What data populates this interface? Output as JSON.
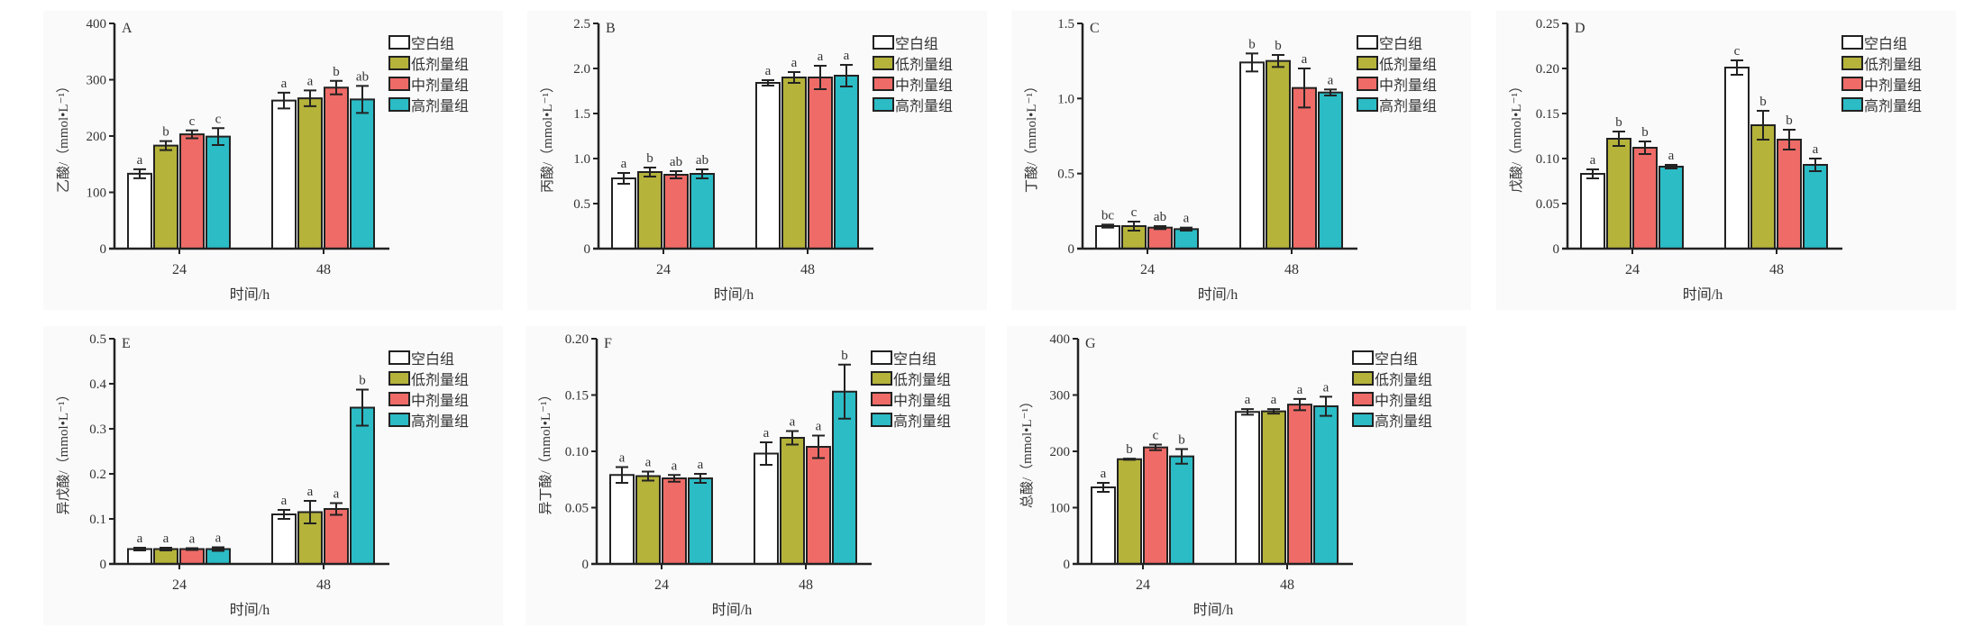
{
  "legend": [
    "空白组",
    "低剂量组",
    "中剂量组",
    "高剂量组"
  ],
  "colors": [
    "#ffffff",
    "#b5b33a",
    "#ef6b67",
    "#2bbcc6"
  ],
  "xlabel": "时间/h",
  "chart_data": [
    {
      "type": "bar",
      "panel": "A",
      "ylabel": "乙酸/（mmol•L⁻¹）",
      "categories": [
        "24",
        "48"
      ],
      "ylim": [
        0,
        400
      ],
      "ticks": [
        "0",
        "100",
        "200",
        "300",
        "400"
      ],
      "tick_values": [
        0,
        100,
        200,
        300,
        400
      ],
      "series": [
        {
          "name": "空白组",
          "values": [
            133,
            263
          ],
          "errors": [
            8,
            14
          ],
          "letters": [
            "a",
            "a"
          ]
        },
        {
          "name": "低剂量组",
          "values": [
            183,
            267
          ],
          "errors": [
            8,
            14
          ],
          "letters": [
            "b",
            "a"
          ]
        },
        {
          "name": "中剂量组",
          "values": [
            203,
            286
          ],
          "errors": [
            7,
            12
          ],
          "letters": [
            "c",
            "b"
          ]
        },
        {
          "name": "高剂量组",
          "values": [
            199,
            265
          ],
          "errors": [
            15,
            24
          ],
          "letters": [
            "c",
            "ab"
          ]
        }
      ]
    },
    {
      "type": "bar",
      "panel": "B",
      "ylabel": "丙酸/（mmol•L⁻¹）",
      "categories": [
        "24",
        "48"
      ],
      "ylim": [
        0,
        2.5
      ],
      "ticks": [
        "0",
        "0.5",
        "1.0",
        "1.5",
        "2.0",
        "2.5"
      ],
      "tick_values": [
        0,
        0.5,
        1,
        1.5,
        2,
        2.5
      ],
      "series": [
        {
          "name": "空白组",
          "values": [
            0.78,
            1.84
          ],
          "errors": [
            0.06,
            0.03
          ],
          "letters": [
            "a",
            "a"
          ]
        },
        {
          "name": "低剂量组",
          "values": [
            0.85,
            1.9
          ],
          "errors": [
            0.05,
            0.06
          ],
          "letters": [
            "b",
            "a"
          ]
        },
        {
          "name": "中剂量组",
          "values": [
            0.82,
            1.9
          ],
          "errors": [
            0.04,
            0.13
          ],
          "letters": [
            "ab",
            "a"
          ]
        },
        {
          "name": "高剂量组",
          "values": [
            0.83,
            1.92
          ],
          "errors": [
            0.05,
            0.12
          ],
          "letters": [
            "ab",
            "a"
          ]
        }
      ]
    },
    {
      "type": "bar",
      "panel": "C",
      "ylabel": "丁酸/（mmol•L⁻¹）",
      "categories": [
        "24",
        "48"
      ],
      "ylim": [
        0,
        1.5
      ],
      "ticks": [
        "0",
        "0.5",
        "1.0",
        "1.5"
      ],
      "tick_values": [
        0,
        0.5,
        1,
        1.5
      ],
      "series": [
        {
          "name": "空白组",
          "values": [
            0.15,
            1.24
          ],
          "errors": [
            0.01,
            0.06
          ],
          "letters": [
            "bc",
            "b"
          ]
        },
        {
          "name": "低剂量组",
          "values": [
            0.15,
            1.25
          ],
          "errors": [
            0.03,
            0.04
          ],
          "letters": [
            "c",
            "b"
          ]
        },
        {
          "name": "中剂量组",
          "values": [
            0.14,
            1.07
          ],
          "errors": [
            0.01,
            0.13
          ],
          "letters": [
            "ab",
            "a"
          ]
        },
        {
          "name": "高剂量组",
          "values": [
            0.13,
            1.04
          ],
          "errors": [
            0.01,
            0.02
          ],
          "letters": [
            "a",
            "a"
          ]
        }
      ]
    },
    {
      "type": "bar",
      "panel": "D",
      "ylabel": "戊酸/（mmol•L⁻¹）",
      "categories": [
        "24",
        "48"
      ],
      "ylim": [
        0,
        0.25
      ],
      "ticks": [
        "0",
        "0.05",
        "0.10",
        "0.15",
        "0.20",
        "0.25"
      ],
      "tick_values": [
        0,
        0.05,
        0.1,
        0.15,
        0.2,
        0.25
      ],
      "series": [
        {
          "name": "空白组",
          "values": [
            0.083,
            0.201
          ],
          "errors": [
            0.005,
            0.008
          ],
          "letters": [
            "a",
            "c"
          ]
        },
        {
          "name": "低剂量组",
          "values": [
            0.122,
            0.137
          ],
          "errors": [
            0.008,
            0.016
          ],
          "letters": [
            "b",
            "b"
          ]
        },
        {
          "name": "中剂量组",
          "values": [
            0.112,
            0.121
          ],
          "errors": [
            0.007,
            0.011
          ],
          "letters": [
            "b",
            "b"
          ]
        },
        {
          "name": "高剂量组",
          "values": [
            0.091,
            0.093
          ],
          "errors": [
            0.002,
            0.007
          ],
          "letters": [
            "a",
            "a"
          ]
        }
      ]
    },
    {
      "type": "bar",
      "panel": "E",
      "ylabel": "异戊酸/（mmol•L⁻¹）",
      "categories": [
        "24",
        "48"
      ],
      "ylim": [
        0,
        0.5
      ],
      "ticks": [
        "0",
        "0.1",
        "0.2",
        "0.3",
        "0.4",
        "0.5"
      ],
      "tick_values": [
        0,
        0.1,
        0.2,
        0.3,
        0.4,
        0.5
      ],
      "series": [
        {
          "name": "空白组",
          "values": [
            0.033,
            0.11
          ],
          "errors": [
            0.003,
            0.01
          ],
          "letters": [
            "a",
            "a"
          ]
        },
        {
          "name": "低剂量组",
          "values": [
            0.033,
            0.115
          ],
          "errors": [
            0.003,
            0.025
          ],
          "letters": [
            "a",
            "a"
          ]
        },
        {
          "name": "中剂量组",
          "values": [
            0.033,
            0.122
          ],
          "errors": [
            0.002,
            0.013
          ],
          "letters": [
            "a",
            "a"
          ]
        },
        {
          "name": "高剂量组",
          "values": [
            0.033,
            0.347
          ],
          "errors": [
            0.004,
            0.04
          ],
          "letters": [
            "a",
            "b"
          ]
        }
      ]
    },
    {
      "type": "bar",
      "panel": "F",
      "ylabel": "异丁酸/（mmol•L⁻¹）",
      "categories": [
        "24",
        "48"
      ],
      "ylim": [
        0,
        0.2
      ],
      "ticks": [
        "0",
        "0.05",
        "0.10",
        "0.15",
        "0.20"
      ],
      "tick_values": [
        0,
        0.05,
        0.1,
        0.15,
        0.2
      ],
      "series": [
        {
          "name": "空白组",
          "values": [
            0.079,
            0.098
          ],
          "errors": [
            0.007,
            0.01
          ],
          "letters": [
            "a",
            "a"
          ]
        },
        {
          "name": "低剂量组",
          "values": [
            0.078,
            0.112
          ],
          "errors": [
            0.004,
            0.006
          ],
          "letters": [
            "a",
            "a"
          ]
        },
        {
          "name": "中剂量组",
          "values": [
            0.076,
            0.104
          ],
          "errors": [
            0.003,
            0.01
          ],
          "letters": [
            "a",
            "a"
          ]
        },
        {
          "name": "高剂量组",
          "values": [
            0.076,
            0.153
          ],
          "errors": [
            0.004,
            0.024
          ],
          "letters": [
            "a",
            "b"
          ]
        }
      ]
    },
    {
      "type": "bar",
      "panel": "G",
      "ylabel": "总酸/（mmol•L⁻¹）",
      "categories": [
        "24",
        "48"
      ],
      "ylim": [
        0,
        400
      ],
      "ticks": [
        "0",
        "100",
        "200",
        "300",
        "400"
      ],
      "tick_values": [
        0,
        100,
        200,
        300,
        400
      ],
      "series": [
        {
          "name": "空白组",
          "values": [
            136,
            270
          ],
          "errors": [
            8,
            5
          ],
          "letters": [
            "a",
            "a"
          ]
        },
        {
          "name": "低剂量组",
          "values": [
            186,
            271
          ],
          "errors": [
            1,
            4
          ],
          "letters": [
            "b",
            "a"
          ]
        },
        {
          "name": "中剂量组",
          "values": [
            207,
            283
          ],
          "errors": [
            5,
            10
          ],
          "letters": [
            "c",
            "a"
          ]
        },
        {
          "name": "高剂量组",
          "values": [
            191,
            280
          ],
          "errors": [
            13,
            17
          ],
          "letters": [
            "b",
            "a"
          ]
        }
      ]
    }
  ]
}
